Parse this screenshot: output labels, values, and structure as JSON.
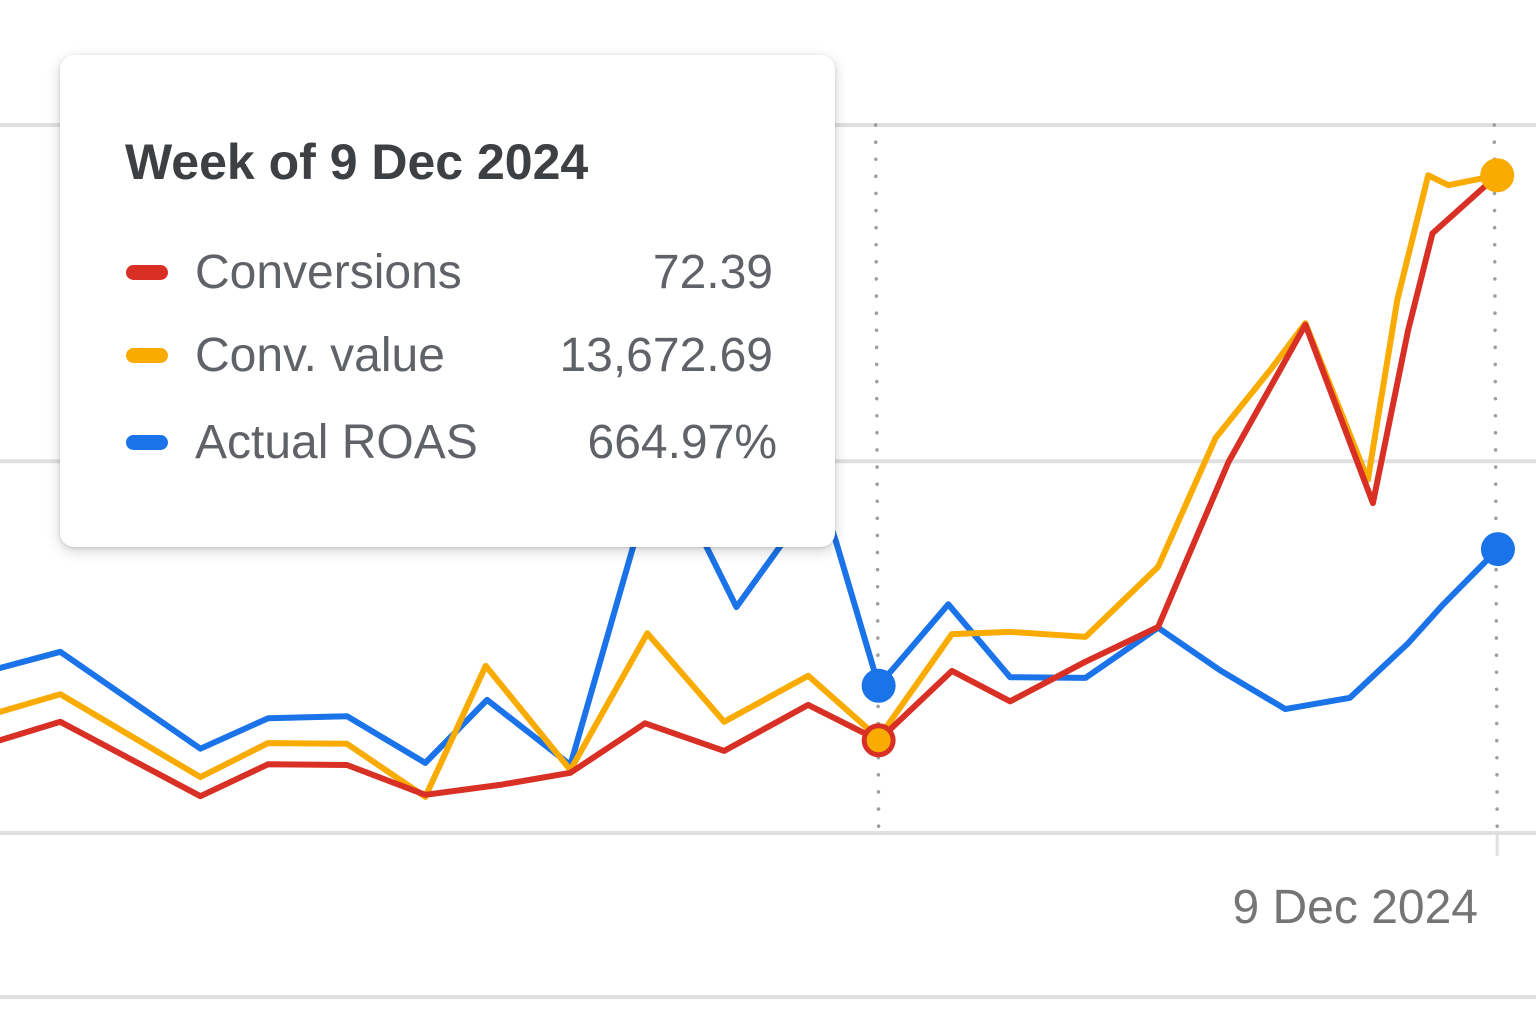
{
  "tooltip": {
    "title": "Week of 9 Dec 2024",
    "rows": [
      {
        "label": "Conversions",
        "value": "72.39",
        "color": "#d93025"
      },
      {
        "label": "Conv. value",
        "value": "13,672.69",
        "color": "#f9ab00"
      },
      {
        "label": "Actual ROAS",
        "value": "664.97%",
        "color": "#1a73e8"
      }
    ]
  },
  "chart_data": {
    "type": "line",
    "title": "",
    "xlabel": "",
    "ylabel": "",
    "x_unit": "weeks (relative index)",
    "y_unit": "relative scale (normalized, axis labels not visible)",
    "xlim": [
      -0.84,
      20.54
    ],
    "ylim": [
      0,
      100
    ],
    "gridlines_y": [
      0,
      52.5,
      100
    ],
    "grid": true,
    "x_tick_labels": [
      {
        "x": 20.0,
        "label": "9 Dec 2024"
      }
    ],
    "hover_x": 11.39,
    "series": [
      {
        "name": "Conversions",
        "color": "#d93025",
        "x": [
          -0.84,
          0,
          1.95,
          2.89,
          3.99,
          5.08,
          6.12,
          7.1,
          8.14,
          9.24,
          10.41,
          11.39,
          12.41,
          13.22,
          14.27,
          15.28,
          16.26,
          17.33,
          18.27,
          18.76,
          19.1,
          20.0
        ],
        "y": [
          13.1,
          15.7,
          5.2,
          9.7,
          9.6,
          5.4,
          6.8,
          8.5,
          15.5,
          11.6,
          18.1,
          13.1,
          22.9,
          18.6,
          24.2,
          29.1,
          52.4,
          71.8,
          46.6,
          71.0,
          84.7,
          92.9
        ]
      },
      {
        "name": "Conv. value",
        "color": "#f9ab00",
        "x": [
          -0.84,
          0,
          1.95,
          2.89,
          3.99,
          5.08,
          5.92,
          7.1,
          8.17,
          9.24,
          10.41,
          11.39,
          12.41,
          13.22,
          14.27,
          15.28,
          16.08,
          16.84,
          17.33,
          18.2,
          18.61,
          19.04,
          19.32,
          20.0
        ],
        "y": [
          17.1,
          19.6,
          7.9,
          12.7,
          12.6,
          5.1,
          23.6,
          8.9,
          28.2,
          15.7,
          22.2,
          13.4,
          28.1,
          28.4,
          27.7,
          37.6,
          55.8,
          65.4,
          72.0,
          49.9,
          75.3,
          92.9,
          91.5,
          92.9
        ]
      },
      {
        "name": "Actual ROAS",
        "color": "#1a73e8",
        "x": [
          -0.84,
          0,
          1.95,
          2.89,
          3.99,
          5.08,
          5.94,
          7.1,
          8.0,
          8.35,
          8.98,
          9.41,
          10.02,
          10.44,
          10.79,
          11.39,
          12.36,
          13.22,
          14.27,
          15.28,
          16.14,
          17.05,
          17.95,
          18.76,
          19.25,
          20.01
        ],
        "y": [
          23.3,
          25.6,
          11.9,
          16.2,
          16.5,
          9.9,
          18.8,
          9.6,
          41.4,
          51.3,
          40.7,
          31.9,
          40.5,
          51.3,
          41.4,
          20.8,
          32.3,
          22.0,
          21.9,
          29.0,
          23.0,
          17.5,
          19.1,
          26.8,
          32.3,
          40.1
        ]
      }
    ]
  }
}
